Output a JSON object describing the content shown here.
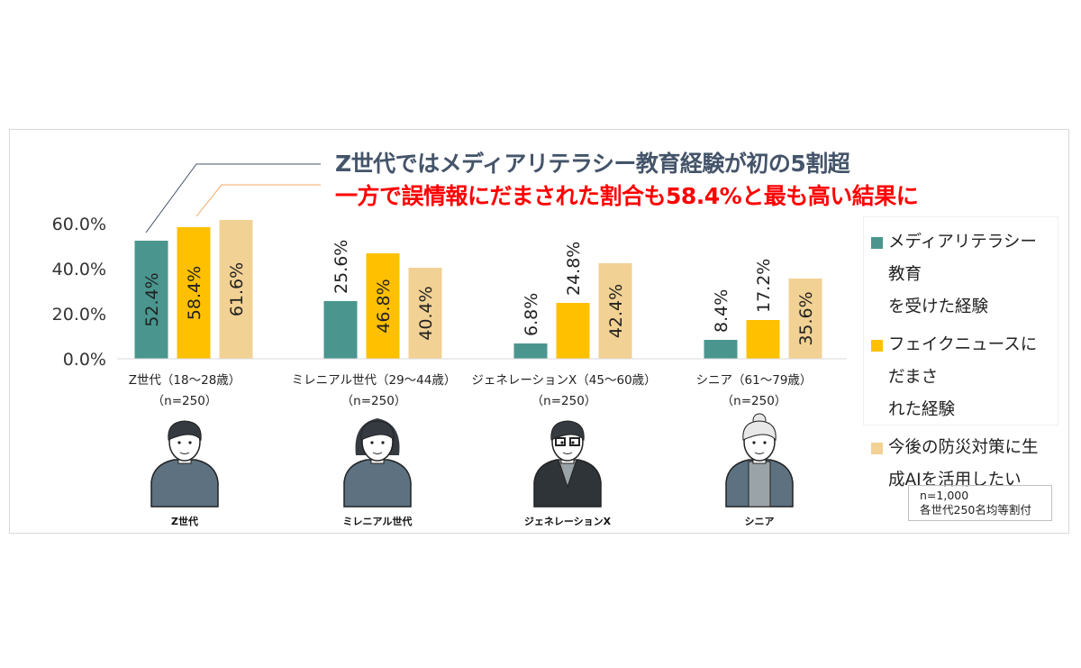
{
  "headline": {
    "line1": "Z世代ではメディアリテラシー教育経験が初の5割超",
    "line2": "一方で誤情報にだまされた割合も58.4%と最も高い結果に"
  },
  "chart_data": {
    "type": "bar",
    "title": "",
    "xlabel": "",
    "ylabel": "",
    "ylim": [
      0,
      60
    ],
    "yticks": [
      "0.0%",
      "20.0%",
      "40.0%",
      "60.0%"
    ],
    "ytick_values": [
      0,
      20,
      40,
      60
    ],
    "grid": false,
    "legend_placement": "right",
    "categories": [
      {
        "line1": "Z世代（18～28歳）",
        "line2": "（n=250）"
      },
      {
        "line1": "ミレニアル世代（29～44歳）",
        "line2": "（n=250）"
      },
      {
        "line1": "ジェネレーションX（45～60歳）",
        "line2": "（n=250）"
      },
      {
        "line1": "シニア（61～79歳）",
        "line2": "（n=250）"
      }
    ],
    "series": [
      {
        "name": "メディアリテラシー教育を受けた経験",
        "legend_lines": [
          "メディアリテラシー教育",
          "を受けた経験"
        ],
        "color": "#4a968f",
        "values": [
          52.4,
          25.6,
          6.8,
          8.4
        ],
        "labels": [
          "52.4%",
          "25.6%",
          "6.8%",
          "8.4%"
        ]
      },
      {
        "name": "フェイクニュースにだまされた経験",
        "legend_lines": [
          "フェイクニュースにだまさ",
          "れた経験"
        ],
        "color": "#ffc000",
        "values": [
          58.4,
          46.8,
          24.8,
          17.2
        ],
        "labels": [
          "58.4%",
          "46.8%",
          "24.8%",
          "17.2%"
        ]
      },
      {
        "name": "今後の防災対策に生成AIを活用したい",
        "legend_lines": [
          "今後の防災対策に生",
          "成AIを活用したい"
        ],
        "color": "#f2d194",
        "values": [
          61.6,
          40.4,
          42.4,
          35.6
        ],
        "labels": [
          "61.6%",
          "40.4%",
          "42.4%",
          "35.6%"
        ]
      }
    ]
  },
  "personas": [
    {
      "label": "Z世代",
      "icon": "young-man-avatar-icon"
    },
    {
      "label": "ミレニアル世代",
      "icon": "woman-avatar-icon"
    },
    {
      "label": "ジェネレーションX",
      "icon": "man-with-glasses-avatar-icon"
    },
    {
      "label": "シニア",
      "icon": "senior-woman-avatar-icon"
    }
  ],
  "note": {
    "line1": "n=1,000",
    "line2": "各世代250名均等割付"
  }
}
